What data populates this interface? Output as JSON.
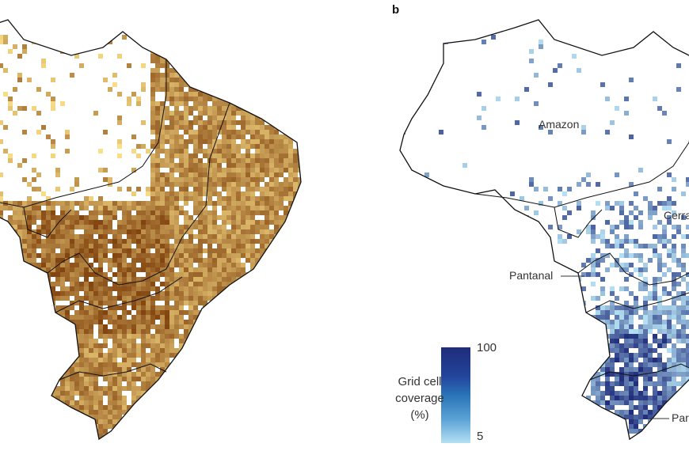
{
  "panel_b": {
    "label": "b"
  },
  "map_a": {
    "colors": {
      "low": "#fbe08a",
      "high": "#7a3a08",
      "none": "#ffffff"
    }
  },
  "map_b": {
    "colors": {
      "low": "#b5e0f2",
      "high": "#1f2c7a",
      "none": "#ffffff"
    },
    "region_labels": {
      "amazon": "Amazon",
      "cerrado": "Cerra",
      "pantanal": "Pantanal",
      "pampa": "Par"
    }
  },
  "legend": {
    "title_line1": "Grid cell",
    "title_line2": "coverage",
    "title_line3": "(%)",
    "max_label": "100",
    "min_label": "5",
    "range": [
      5,
      100
    ]
  }
}
